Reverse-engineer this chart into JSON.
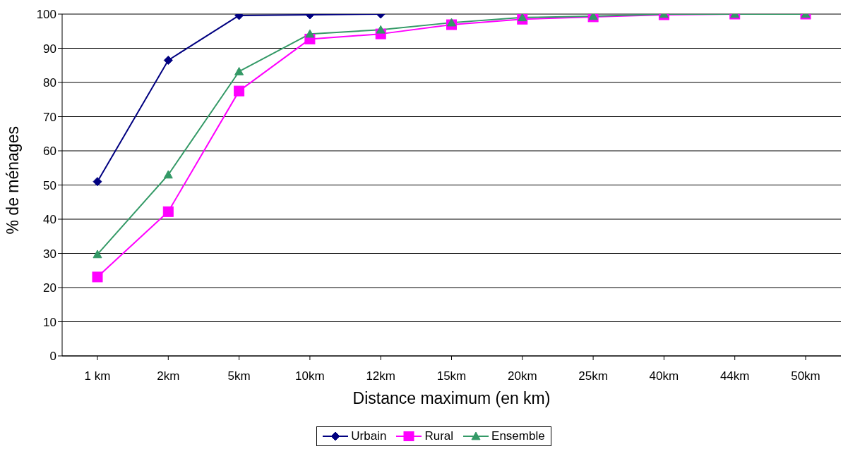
{
  "chart_data": {
    "type": "line",
    "xlabel": "Distance maximum (en km)",
    "ylabel": "% de ménages",
    "categories": [
      "1 km",
      "2km",
      "5km",
      "10km",
      "12km",
      "15km",
      "20km",
      "25km",
      "40km",
      "44km",
      "50km"
    ],
    "series": [
      {
        "name": "Urbain",
        "color": "#000080",
        "marker": "diamond",
        "values": [
          51,
          86.5,
          99.6,
          99.8,
          100,
          null,
          null,
          null,
          null,
          null,
          null
        ]
      },
      {
        "name": "Rural",
        "color": "#ff00ff",
        "marker": "square",
        "values": [
          23.1,
          42.2,
          77.5,
          92.7,
          94.2,
          96.9,
          98.5,
          99.2,
          99.8,
          100,
          100
        ]
      },
      {
        "name": "Ensemble",
        "color": "#339966",
        "marker": "triangle",
        "values": [
          29.7,
          53,
          83.2,
          94.2,
          95.4,
          97.5,
          99,
          99.4,
          100,
          100,
          100
        ]
      }
    ],
    "ylim": [
      0,
      100
    ],
    "yticks": [
      0,
      10,
      20,
      30,
      40,
      50,
      60,
      70,
      80,
      90,
      100
    ],
    "grid": "y",
    "legend": "bottom",
    "line_style": "solid"
  }
}
